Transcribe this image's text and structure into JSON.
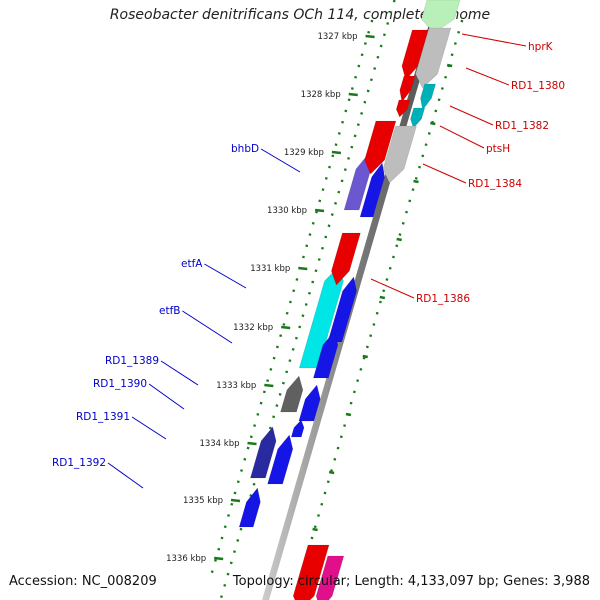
{
  "title": "Roseobacter denitrificans OCh 114, complete genome",
  "accession": "Accession: NC_008209",
  "stats": "Topology: circular; Length: 4,133,097 bp; Genes: 3,988",
  "ruler": [
    "1327 kbp",
    "1328 kbp",
    "1329 kbp",
    "1330 kbp",
    "1331 kbp",
    "1332 kbp",
    "1333 kbp",
    "1334 kbp",
    "1335 kbp",
    "1336 kbp"
  ],
  "forward_genes": [
    {
      "label": "bhbD",
      "color": "#6b57d0"
    },
    {
      "label": "etfA",
      "color": "#00e6e6"
    },
    {
      "label": "etfB",
      "color": "#1515e6"
    },
    {
      "label": "RD1_1389",
      "color": "#606060"
    },
    {
      "label": "RD1_1390",
      "color": "#1515e6"
    },
    {
      "label": "RD1_1391",
      "color": "#2a2aa0"
    },
    {
      "label": "RD1_1392",
      "color": "#1515e6"
    }
  ],
  "reverse_genes": [
    {
      "label": "hprK",
      "color": "#e80000"
    },
    {
      "label": "RD1_1380",
      "color": "#e80000"
    },
    {
      "label": "RD1_1382",
      "color": "#00b0b8"
    },
    {
      "label": "ptsH",
      "color": "#00b0b8"
    },
    {
      "label": "RD1_1384",
      "color": "#e80000"
    },
    {
      "label": "RD1_1386",
      "color": "#e80000"
    }
  ],
  "colors": {
    "forward": "#0000cc",
    "reverse": "#cc0000",
    "ruler": "#1a7a1a",
    "backbone": "#7a7a7a"
  }
}
